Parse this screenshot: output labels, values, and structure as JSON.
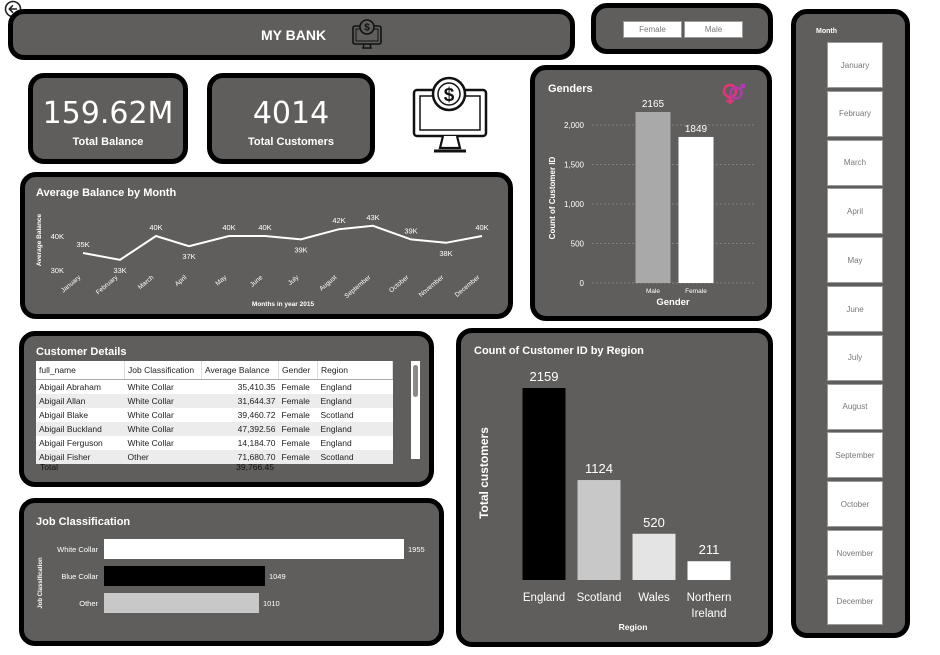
{
  "header": {
    "title": "MY BANK",
    "back_icon": "back-arrow-icon",
    "logo_icon": "computer-dollar-icon"
  },
  "gender_slicer": {
    "options": [
      "Female",
      "Male"
    ]
  },
  "kpis": [
    {
      "value": "159.62M",
      "label": "Total Balance"
    },
    {
      "value": "4014",
      "label": "Total Customers"
    }
  ],
  "genders_chart": {
    "title": "Genders",
    "icon": "gender-symbols-icon",
    "chart_data": {
      "type": "bar",
      "categories": [
        "Male",
        "Female"
      ],
      "values": [
        2165,
        1849
      ],
      "xlabel": "Gender",
      "ylabel": "Count of Customer ID",
      "ylim": [
        0,
        2165
      ],
      "yticks": [
        "0",
        "500",
        "1,000",
        "1,500",
        "2,000"
      ],
      "colors": [
        "#a9a9a9",
        "#ffffff"
      ],
      "grid": true
    }
  },
  "balance_chart": {
    "title": "Average Balance by Month",
    "chart_data": {
      "type": "line",
      "x": [
        "January",
        "February",
        "March",
        "April",
        "May",
        "June",
        "July",
        "August",
        "September",
        "October",
        "November",
        "December"
      ],
      "values": [
        35000,
        33000,
        40000,
        37000,
        40000,
        40000,
        39000,
        42000,
        43000,
        39000,
        38000,
        40000
      ],
      "labels": [
        "35K",
        "33K",
        "40K",
        "37K",
        "40K",
        "40K",
        "39K",
        "42K",
        "43K",
        "39K",
        "38K",
        "40K"
      ],
      "xlabel": "Months in year 2015",
      "ylabel": "Average Balance",
      "yticks": [
        "30K",
        "40K"
      ],
      "ylim": [
        30000,
        45000
      ],
      "color": "#ffffff"
    }
  },
  "customer_details": {
    "title": "Customer Details",
    "columns": [
      "full_name",
      "Job Classification",
      "Average Balance",
      "Gender",
      "Region"
    ],
    "rows": [
      [
        "Abigail Abraham",
        "White Collar",
        "35,410.35",
        "Female",
        "England"
      ],
      [
        "Abigail Allan",
        "White Collar",
        "31,644.37",
        "Female",
        "England"
      ],
      [
        "Abigail Blake",
        "White Collar",
        "39,460.72",
        "Female",
        "Scotland"
      ],
      [
        "Abigail Buckland",
        "White Collar",
        "47,392.56",
        "Female",
        "England"
      ],
      [
        "Abigail Ferguson",
        "White Collar",
        "14,184.70",
        "Female",
        "England"
      ],
      [
        "Abigail Fisher",
        "Other",
        "71,680.70",
        "Female",
        "Scotland"
      ]
    ],
    "total_label": "Total",
    "total_value": "39,766.45"
  },
  "region_chart": {
    "title": "Count of Customer ID by Region",
    "chart_data": {
      "type": "bar",
      "categories": [
        "England",
        "Scotland",
        "Wales",
        "Northern Ireland"
      ],
      "values": [
        2159,
        1124,
        520,
        211
      ],
      "xlabel": "Region",
      "ylabel": "Total customers",
      "ylim": [
        0,
        2159
      ],
      "colors": [
        "#000000",
        "#c8c8c8",
        "#e4e4e4",
        "#ffffff"
      ]
    }
  },
  "job_chart": {
    "title": "Job Classification",
    "chart_data": {
      "type": "bar",
      "orientation": "horizontal",
      "categories": [
        "White Collar",
        "Blue Collar",
        "Other"
      ],
      "values": [
        1955,
        1049,
        1010
      ],
      "ylabel": "Job Classification",
      "xlim": [
        0,
        1955
      ],
      "colors": [
        "#ffffff",
        "#000000",
        "#c8c8c8"
      ]
    }
  },
  "month_slicer": {
    "title": "Month",
    "options": [
      "January",
      "February",
      "March",
      "April",
      "May",
      "June",
      "July",
      "August",
      "September",
      "October",
      "November",
      "December"
    ]
  }
}
